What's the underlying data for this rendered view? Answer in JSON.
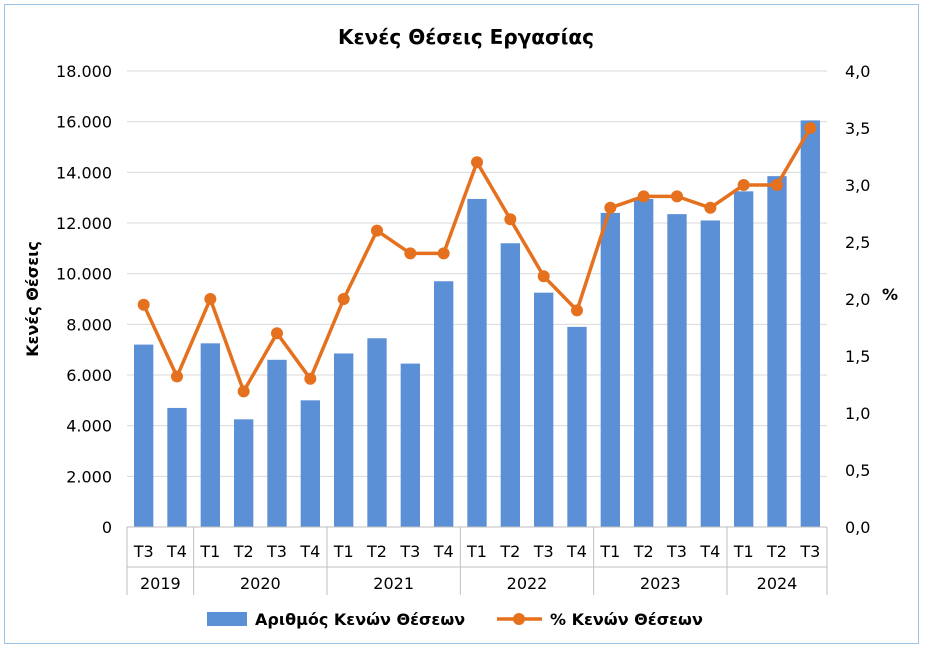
{
  "chart_data": {
    "type": "bar",
    "title": "Κενές Θέσεις Εργασίας",
    "ylabel": "Κενές Θέσεις",
    "y2label": "%",
    "ylim": [
      0,
      18000
    ],
    "y2lim": [
      0,
      4.0
    ],
    "yticks": [
      "0",
      "2.000",
      "4.000",
      "6.000",
      "8.000",
      "10.000",
      "12.000",
      "14.000",
      "16.000",
      "18.000"
    ],
    "y2ticks": [
      "0,0",
      "0,5",
      "1,0",
      "1,5",
      "2,0",
      "2,5",
      "3,0",
      "3,5",
      "4,0"
    ],
    "categories": [
      "Τ3",
      "Τ4",
      "Τ1",
      "Τ2",
      "Τ3",
      "Τ4",
      "Τ1",
      "Τ2",
      "Τ3",
      "Τ4",
      "Τ1",
      "Τ2",
      "Τ3",
      "Τ4",
      "Τ1",
      "Τ2",
      "Τ3",
      "Τ4",
      "Τ1",
      "Τ2",
      "Τ3"
    ],
    "groups": [
      {
        "label": "2019",
        "count": 2
      },
      {
        "label": "2020",
        "count": 4
      },
      {
        "label": "2021",
        "count": 4
      },
      {
        "label": "2022",
        "count": 4
      },
      {
        "label": "2023",
        "count": 4
      },
      {
        "label": "2024",
        "count": 3
      }
    ],
    "series": [
      {
        "name": "Αριθμός Κενών Θέσεων",
        "type": "bar",
        "axis": "left",
        "color": "#5b8fd6",
        "values": [
          7200,
          4700,
          7250,
          4250,
          6600,
          5000,
          6850,
          7450,
          6450,
          9700,
          12950,
          11200,
          9250,
          7900,
          12400,
          12950,
          12350,
          12100,
          13250,
          13850,
          16050
        ]
      },
      {
        "name": "% Κενών Θέσεων",
        "type": "line",
        "axis": "right",
        "color": "#e5711f",
        "values": [
          1.95,
          1.32,
          2.0,
          1.19,
          1.7,
          1.3,
          2.0,
          2.6,
          2.4,
          2.4,
          3.2,
          2.7,
          2.2,
          1.9,
          2.8,
          2.9,
          2.9,
          2.8,
          3.0,
          3.0,
          3.5
        ]
      }
    ],
    "grid": true,
    "legend_position": "bottom"
  }
}
